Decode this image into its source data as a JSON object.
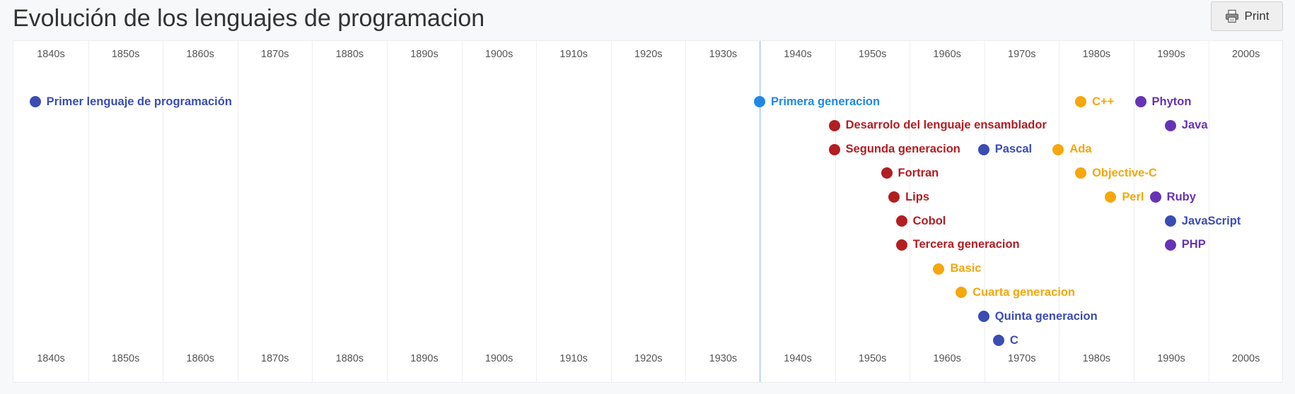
{
  "title": "Evolución de los lenguajes de programacion",
  "print_label": "Print",
  "print_icon": "printer-icon",
  "colors": {
    "blue": "#3b4cb3",
    "lightblue": "#1f88e6",
    "red": "#b21e22",
    "orange": "#f5a70c",
    "purple": "#6633b5"
  },
  "decades": [
    "1840s",
    "1850s",
    "1860s",
    "1870s",
    "1880s",
    "1890s",
    "1900s",
    "1910s",
    "1920s",
    "1930s",
    "1940s",
    "1950s",
    "1960s",
    "1970s",
    "1980s",
    "1990s",
    "2000s"
  ],
  "events": [
    {
      "label": "Primer lenguaje de programación",
      "color": "#3b4cb3",
      "year": 1843,
      "row": 0
    },
    {
      "label": "Primera generacion",
      "color": "#1f88e6",
      "year": 1940,
      "row": 0
    },
    {
      "label": "C++",
      "color": "#f5a70c",
      "year": 1983,
      "row": 0
    },
    {
      "label": "Phyton",
      "color": "#6633b5",
      "year": 1991,
      "row": 0
    },
    {
      "label": "Desarrolo del lenguaje ensamblador",
      "color": "#b21e22",
      "year": 1950,
      "row": 1
    },
    {
      "label": "Java",
      "color": "#6633b5",
      "year": 1995,
      "row": 1
    },
    {
      "label": "Segunda generacion",
      "color": "#b21e22",
      "year": 1950,
      "row": 2
    },
    {
      "label": "Pascal",
      "color": "#3b4cb3",
      "year": 1970,
      "row": 2
    },
    {
      "label": "Ada",
      "color": "#f5a70c",
      "year": 1980,
      "row": 2
    },
    {
      "label": "Fortran",
      "color": "#b21e22",
      "year": 1957,
      "row": 3
    },
    {
      "label": "Objective-C",
      "color": "#f5a70c",
      "year": 1983,
      "row": 3
    },
    {
      "label": "Lips",
      "color": "#b21e22",
      "year": 1958,
      "row": 4
    },
    {
      "label": "Perl",
      "color": "#f5a70c",
      "year": 1987,
      "row": 4
    },
    {
      "label": "Ruby",
      "color": "#6633b5",
      "year": 1993,
      "row": 4
    },
    {
      "label": "Cobol",
      "color": "#b21e22",
      "year": 1959,
      "row": 5
    },
    {
      "label": "JavaScript",
      "color": "#3b4cb3",
      "year": 1995,
      "row": 5
    },
    {
      "label": "Tercera generacion",
      "color": "#b21e22",
      "year": 1959,
      "row": 6
    },
    {
      "label": "PHP",
      "color": "#6633b5",
      "year": 1995,
      "row": 6
    },
    {
      "label": "Basic",
      "color": "#f5a70c",
      "year": 1964,
      "row": 7
    },
    {
      "label": "Cuarta generacion",
      "color": "#f5a70c",
      "year": 1967,
      "row": 8
    },
    {
      "label": "Quinta generacion",
      "color": "#3b4cb3",
      "year": 1970,
      "row": 9
    },
    {
      "label": "C",
      "color": "#3b4cb3",
      "year": 1972,
      "row": 10
    }
  ],
  "today_year": 1940
}
